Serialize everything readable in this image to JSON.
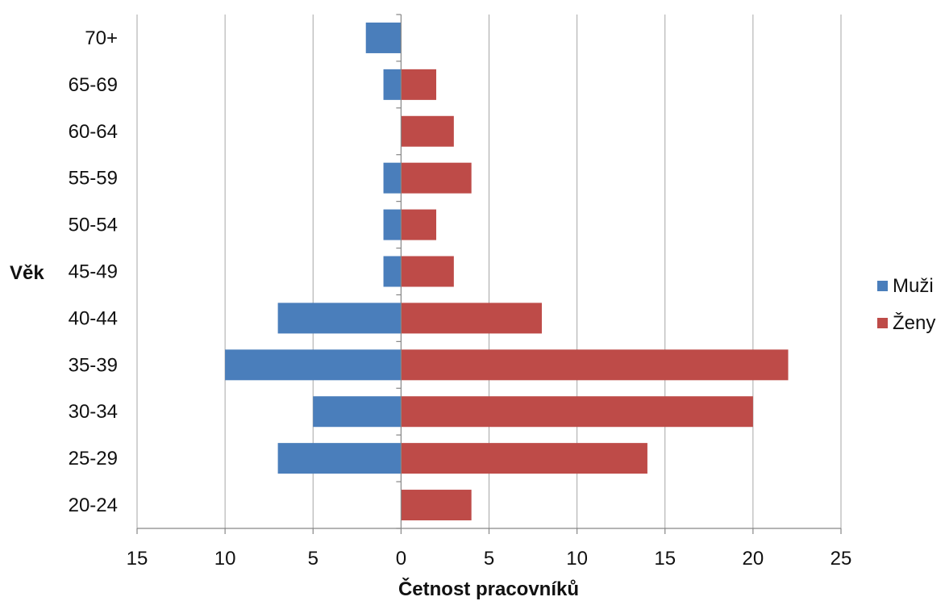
{
  "chart_data": {
    "type": "bar",
    "orientation": "horizontal",
    "title": "",
    "xlabel": "Četnost pracovníků",
    "ylabel": "Věk",
    "categories": [
      "20-24",
      "25-29",
      "30-34",
      "35-39",
      "40-44",
      "45-49",
      "50-54",
      "55-59",
      "60-64",
      "65-69",
      "70+"
    ],
    "series": [
      {
        "name": "Muži",
        "color": "#4a7ebb",
        "direction": "left",
        "values": [
          0,
          7,
          5,
          10,
          7,
          1,
          1,
          1,
          0,
          1,
          2
        ]
      },
      {
        "name": "Ženy",
        "color": "#be4b48",
        "direction": "right",
        "values": [
          4,
          14,
          20,
          22,
          8,
          3,
          2,
          4,
          3,
          2,
          0
        ]
      }
    ],
    "xlim": [
      -15,
      25
    ],
    "xticks": [
      -15,
      -10,
      -5,
      0,
      5,
      10,
      15,
      20,
      25
    ],
    "xtick_labels": [
      "15",
      "10",
      "5",
      "0",
      "5",
      "10",
      "15",
      "20",
      "25"
    ],
    "grid": "vertical",
    "legend": "right"
  }
}
